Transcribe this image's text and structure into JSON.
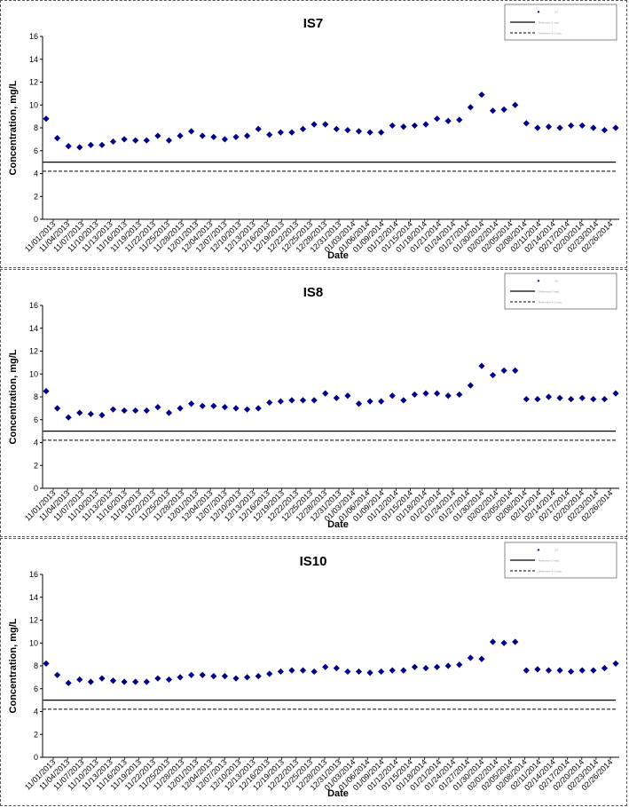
{
  "colors": {
    "marker": "#00008B",
    "line": "#000000",
    "frame": "#555555"
  },
  "chart_data": [
    {
      "type": "scatter",
      "title": "IS7",
      "xlabel": "Date",
      "ylabel": "Concentration, mg/L",
      "ylim": [
        0,
        16
      ],
      "yticks": [
        0,
        2,
        4,
        6,
        8,
        10,
        12,
        14,
        16
      ],
      "x": [
        "11/01/2013",
        "11/04/2013",
        "11/07/2013",
        "11/10/2013",
        "11/13/2013",
        "11/16/2013",
        "11/19/2013",
        "11/22/2013",
        "11/25/2013",
        "11/28/2013",
        "12/01/2013",
        "12/04/2013",
        "12/07/2013",
        "12/10/2013",
        "12/13/2013",
        "12/16/2013",
        "12/19/2013",
        "12/22/2013",
        "12/25/2013",
        "12/28/2013",
        "12/31/2013",
        "01/03/2014",
        "01/06/2014",
        "01/09/2014",
        "01/12/2014",
        "01/15/2014",
        "01/18/2014",
        "01/21/2014",
        "01/24/2014",
        "01/27/2014",
        "01/30/2014",
        "02/02/2014",
        "02/05/2014",
        "02/08/2014",
        "02/11/2014",
        "02/14/2014",
        "02/17/2014",
        "02/20/2014",
        "02/23/2014",
        "02/26/2014"
      ],
      "legend": [
        "DO",
        "Reference 5 mg/L",
        "Reference 4.2 mg/L"
      ],
      "hlines": [
        5.0,
        4.2
      ],
      "points": [
        [
          0,
          8.8
        ],
        [
          1,
          7.1
        ],
        [
          2,
          6.4
        ],
        [
          3,
          6.3
        ],
        [
          4,
          6.5
        ],
        [
          5,
          6.5
        ],
        [
          6,
          6.8
        ],
        [
          7,
          7.0
        ],
        [
          8,
          6.9
        ],
        [
          9,
          6.9
        ],
        [
          10,
          7.3
        ],
        [
          11,
          6.9
        ],
        [
          12,
          7.3
        ],
        [
          13,
          7.7
        ],
        [
          14,
          7.3
        ],
        [
          15,
          7.2
        ],
        [
          16,
          7.0
        ],
        [
          17,
          7.2
        ],
        [
          18,
          7.3
        ],
        [
          19,
          7.9
        ],
        [
          20,
          7.4
        ],
        [
          21,
          7.6
        ],
        [
          22,
          7.6
        ],
        [
          23,
          7.9
        ],
        [
          24,
          8.3
        ],
        [
          25,
          8.3
        ],
        [
          26,
          7.9
        ],
        [
          27,
          7.8
        ],
        [
          28,
          7.7
        ],
        [
          29,
          7.6
        ],
        [
          30,
          7.6
        ],
        [
          31,
          8.2
        ],
        [
          32,
          8.1
        ],
        [
          33,
          8.2
        ],
        [
          34,
          8.3
        ],
        [
          35,
          8.8
        ],
        [
          36,
          8.6
        ],
        [
          37,
          8.7
        ],
        [
          38,
          9.8
        ],
        [
          39,
          10.9
        ],
        [
          40,
          9.5
        ],
        [
          41,
          9.6
        ],
        [
          42,
          10.0
        ],
        [
          43,
          8.4
        ],
        [
          44,
          8.0
        ],
        [
          45,
          8.1
        ],
        [
          46,
          8.0
        ],
        [
          47,
          8.2
        ],
        [
          48,
          8.2
        ],
        [
          49,
          8.0
        ],
        [
          50,
          7.8
        ],
        [
          51,
          8.0
        ]
      ],
      "npoints": 52
    },
    {
      "type": "scatter",
      "title": "IS8",
      "xlabel": "Date",
      "ylabel": "Concentration, mg/L",
      "ylim": [
        0,
        16
      ],
      "yticks": [
        0,
        2,
        4,
        6,
        8,
        10,
        12,
        14,
        16
      ],
      "x": [
        "11/01/2013",
        "11/04/2013",
        "11/07/2013",
        "11/10/2013",
        "11/13/2013",
        "11/16/2013",
        "11/19/2013",
        "11/22/2013",
        "11/25/2013",
        "11/28/2013",
        "12/01/2013",
        "12/04/2013",
        "12/07/2013",
        "12/10/2013",
        "12/13/2013",
        "12/16/2013",
        "12/19/2013",
        "12/22/2013",
        "12/25/2013",
        "12/28/2013",
        "12/31/2013",
        "01/03/2014",
        "01/06/2014",
        "01/09/2014",
        "01/12/2014",
        "01/15/2014",
        "01/18/2014",
        "01/21/2014",
        "01/24/2014",
        "01/27/2014",
        "01/30/2014",
        "02/02/2014",
        "02/05/2014",
        "02/08/2014",
        "02/11/2014",
        "02/14/2014",
        "02/17/2014",
        "02/20/2014",
        "02/23/2014",
        "02/26/2014"
      ],
      "legend": [
        "DO",
        "Reference 5 mg/L",
        "Reference 4.2 mg/L"
      ],
      "hlines": [
        5.0,
        4.2
      ],
      "points": [
        [
          0,
          8.5
        ],
        [
          1,
          7.0
        ],
        [
          2,
          6.2
        ],
        [
          3,
          6.6
        ],
        [
          4,
          6.5
        ],
        [
          5,
          6.4
        ],
        [
          6,
          6.9
        ],
        [
          7,
          6.8
        ],
        [
          8,
          6.8
        ],
        [
          9,
          6.8
        ],
        [
          10,
          7.1
        ],
        [
          11,
          6.6
        ],
        [
          12,
          7.0
        ],
        [
          13,
          7.4
        ],
        [
          14,
          7.2
        ],
        [
          15,
          7.2
        ],
        [
          16,
          7.1
        ],
        [
          17,
          7.0
        ],
        [
          18,
          6.9
        ],
        [
          19,
          7.0
        ],
        [
          20,
          7.5
        ],
        [
          21,
          7.6
        ],
        [
          22,
          7.7
        ],
        [
          23,
          7.7
        ],
        [
          24,
          7.7
        ],
        [
          25,
          8.3
        ],
        [
          26,
          7.9
        ],
        [
          27,
          8.1
        ],
        [
          28,
          7.4
        ],
        [
          29,
          7.6
        ],
        [
          30,
          7.6
        ],
        [
          31,
          8.1
        ],
        [
          32,
          7.7
        ],
        [
          33,
          8.2
        ],
        [
          34,
          8.3
        ],
        [
          35,
          8.3
        ],
        [
          36,
          8.1
        ],
        [
          37,
          8.2
        ],
        [
          38,
          9.0
        ],
        [
          39,
          10.7
        ],
        [
          40,
          9.9
        ],
        [
          41,
          10.3
        ],
        [
          42,
          10.3
        ],
        [
          43,
          7.8
        ],
        [
          44,
          7.8
        ],
        [
          45,
          8.0
        ],
        [
          46,
          7.9
        ],
        [
          47,
          7.8
        ],
        [
          48,
          7.9
        ],
        [
          49,
          7.8
        ],
        [
          50,
          7.8
        ],
        [
          51,
          8.3
        ]
      ],
      "npoints": 52
    },
    {
      "type": "scatter",
      "title": "IS10",
      "xlabel": "Date",
      "ylabel": "Concentration, mg/L",
      "ylim": [
        0,
        16
      ],
      "yticks": [
        0,
        2,
        4,
        6,
        8,
        10,
        12,
        14,
        16
      ],
      "x": [
        "11/01/2013",
        "11/04/2013",
        "11/07/2013",
        "11/10/2013",
        "11/13/2013",
        "11/16/2013",
        "11/19/2013",
        "11/22/2013",
        "11/25/2013",
        "11/28/2013",
        "12/01/2013",
        "12/04/2013",
        "12/07/2013",
        "12/10/2013",
        "12/13/2013",
        "12/16/2013",
        "12/19/2013",
        "12/22/2013",
        "12/25/2013",
        "12/28/2013",
        "12/31/2013",
        "01/03/2014",
        "01/06/2014",
        "01/09/2014",
        "01/12/2014",
        "01/15/2014",
        "01/18/2014",
        "01/21/2014",
        "01/24/2014",
        "01/27/2014",
        "01/30/2014",
        "02/02/2014",
        "02/05/2014",
        "02/08/2014",
        "02/11/2014",
        "02/14/2014",
        "02/17/2014",
        "02/20/2014",
        "02/23/2014",
        "02/26/2014"
      ],
      "legend": [
        "DO",
        "Reference 5 mg/L",
        "Reference 4.2 mg/L"
      ],
      "hlines": [
        5.0,
        4.2
      ],
      "points": [
        [
          0,
          8.2
        ],
        [
          1,
          7.2
        ],
        [
          2,
          6.5
        ],
        [
          3,
          6.8
        ],
        [
          4,
          6.6
        ],
        [
          5,
          6.9
        ],
        [
          6,
          6.7
        ],
        [
          7,
          6.6
        ],
        [
          8,
          6.6
        ],
        [
          9,
          6.6
        ],
        [
          10,
          6.9
        ],
        [
          11,
          6.8
        ],
        [
          12,
          7.0
        ],
        [
          13,
          7.2
        ],
        [
          14,
          7.2
        ],
        [
          15,
          7.1
        ],
        [
          16,
          7.1
        ],
        [
          17,
          6.9
        ],
        [
          18,
          7.0
        ],
        [
          19,
          7.1
        ],
        [
          20,
          7.3
        ],
        [
          21,
          7.5
        ],
        [
          22,
          7.6
        ],
        [
          23,
          7.6
        ],
        [
          24,
          7.5
        ],
        [
          25,
          7.9
        ],
        [
          26,
          7.8
        ],
        [
          27,
          7.5
        ],
        [
          28,
          7.5
        ],
        [
          29,
          7.4
        ],
        [
          30,
          7.5
        ],
        [
          31,
          7.6
        ],
        [
          32,
          7.6
        ],
        [
          33,
          7.9
        ],
        [
          34,
          7.8
        ],
        [
          35,
          7.9
        ],
        [
          36,
          8.0
        ],
        [
          37,
          8.1
        ],
        [
          38,
          8.7
        ],
        [
          39,
          8.6
        ],
        [
          40,
          10.1
        ],
        [
          41,
          10.0
        ],
        [
          42,
          10.1
        ],
        [
          43,
          7.6
        ],
        [
          44,
          7.7
        ],
        [
          45,
          7.6
        ],
        [
          46,
          7.6
        ],
        [
          47,
          7.5
        ],
        [
          48,
          7.6
        ],
        [
          49,
          7.6
        ],
        [
          50,
          7.8
        ],
        [
          51,
          8.2
        ]
      ],
      "npoints": 52
    }
  ]
}
